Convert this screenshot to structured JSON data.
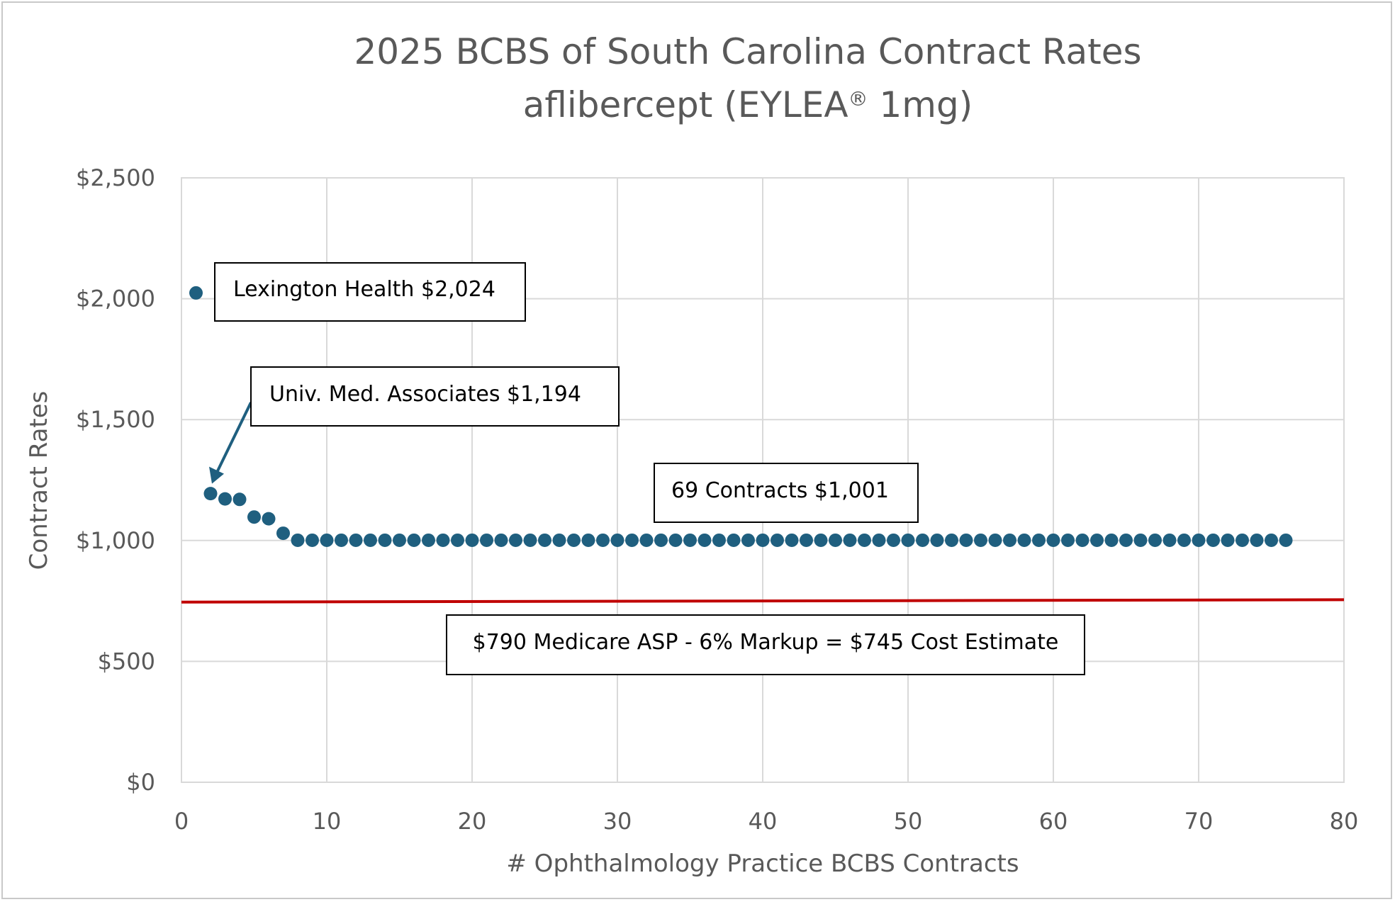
{
  "chart_data": {
    "type": "scatter",
    "title_line1": "2025 BCBS of South Carolina Contract Rates",
    "title_line2_main": "aflibercept (EYLEA",
    "title_line2_sup": "®",
    "title_line2_end": " 1mg)",
    "xlabel": "# Ophthalmology Practice BCBS Contracts",
    "ylabel": "Contract Rates",
    "xlim": [
      0,
      80
    ],
    "ylim": [
      0,
      2500
    ],
    "x_ticks": [
      0,
      10,
      20,
      30,
      40,
      50,
      60,
      70,
      80
    ],
    "x_tick_labels": [
      "0",
      "10",
      "20",
      "30",
      "40",
      "50",
      "60",
      "70",
      "80"
    ],
    "y_ticks": [
      0,
      500,
      1000,
      1500,
      2000,
      2500
    ],
    "y_tick_labels": [
      "$0",
      "$500",
      "$1,000",
      "$1,500",
      "$2,000",
      "$2,500"
    ],
    "grid": true,
    "series": [
      {
        "color": "#1f5f7f",
        "x": [
          1,
          2,
          3,
          4,
          5,
          6,
          7,
          8,
          9,
          10,
          11,
          12,
          13,
          14,
          15,
          16,
          17,
          18,
          19,
          20,
          21,
          22,
          23,
          24,
          25,
          26,
          27,
          28,
          29,
          30,
          31,
          32,
          33,
          34,
          35,
          36,
          37,
          38,
          39,
          40,
          41,
          42,
          43,
          44,
          45,
          46,
          47,
          48,
          49,
          50,
          51,
          52,
          53,
          54,
          55,
          56,
          57,
          58,
          59,
          60,
          61,
          62,
          63,
          64,
          65,
          66,
          67,
          68,
          69,
          70,
          71,
          72,
          73,
          74,
          75,
          76
        ],
        "y": [
          2024,
          1194,
          1172,
          1170,
          1097,
          1090,
          1030,
          1001,
          1001,
          1001,
          1001,
          1001,
          1001,
          1001,
          1001,
          1001,
          1001,
          1001,
          1001,
          1001,
          1001,
          1001,
          1001,
          1001,
          1001,
          1001,
          1001,
          1001,
          1001,
          1001,
          1001,
          1001,
          1001,
          1001,
          1001,
          1001,
          1001,
          1001,
          1001,
          1001,
          1001,
          1001,
          1001,
          1001,
          1001,
          1001,
          1001,
          1001,
          1001,
          1001,
          1001,
          1001,
          1001,
          1001,
          1001,
          1001,
          1001,
          1001,
          1001,
          1001,
          1001,
          1001,
          1001,
          1001,
          1001,
          1001,
          1001,
          1001,
          1001,
          1001,
          1001,
          1001,
          1001,
          1001,
          1001,
          1001
        ]
      }
    ],
    "reference_line": {
      "y_start": 745,
      "y_end": 755,
      "color": "#c00000"
    },
    "annotations": [
      {
        "text": "Lexington Health $2,024"
      },
      {
        "text": "Univ. Med. Associates $1,194",
        "arrow_to": {
          "x": 2,
          "y": 1194
        },
        "arrow_color": "#1f5f7f"
      },
      {
        "text": "69 Contracts $1,001"
      },
      {
        "text": "$790 Medicare ASP - 6% Markup = $745 Cost Estimate"
      }
    ]
  }
}
